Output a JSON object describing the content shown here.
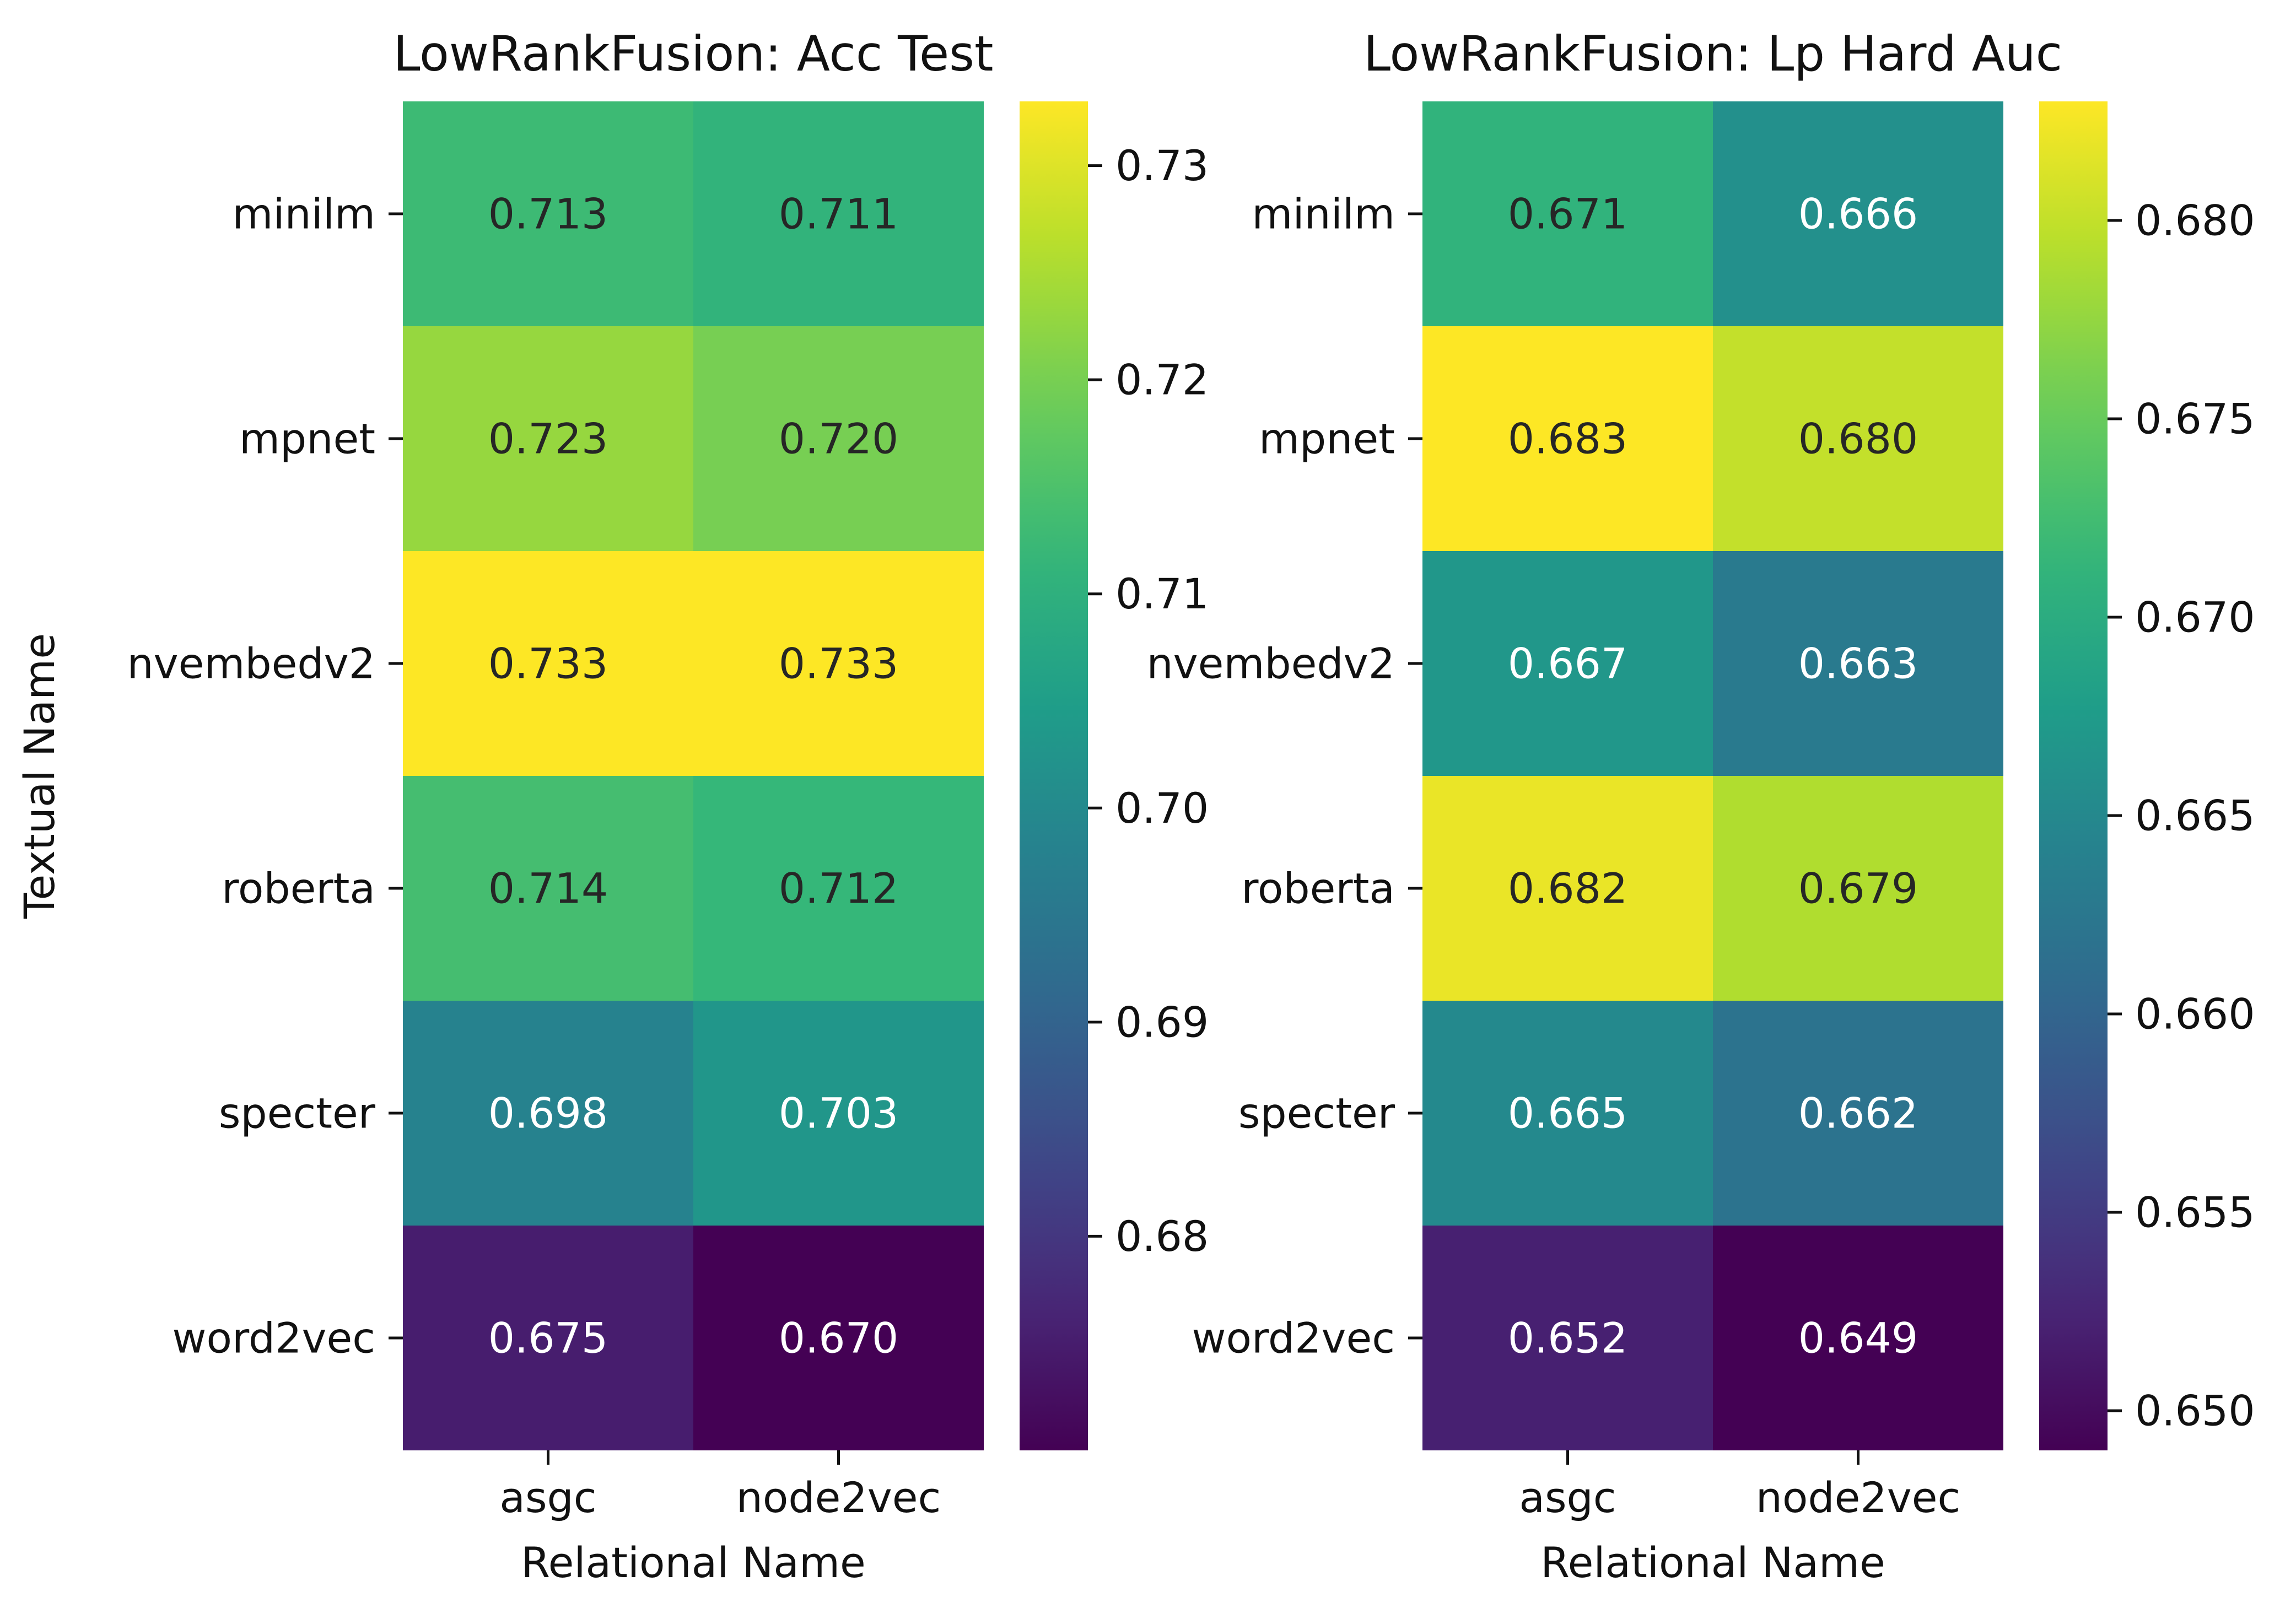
{
  "chart_data": [
    {
      "type": "heatmap",
      "title": "LowRankFusion: Acc Test",
      "xlabel": "Relational Name",
      "ylabel": "Textual Name",
      "x": [
        "asgc",
        "node2vec"
      ],
      "y": [
        "minilm",
        "mpnet",
        "nvembedv2",
        "roberta",
        "specter",
        "word2vec"
      ],
      "values": [
        [
          0.713,
          0.711
        ],
        [
          0.723,
          0.72
        ],
        [
          0.733,
          0.733
        ],
        [
          0.714,
          0.712
        ],
        [
          0.698,
          0.703
        ],
        [
          0.675,
          0.67
        ]
      ],
      "cell_labels": [
        [
          "0.713",
          "0.711"
        ],
        [
          "0.723",
          "0.720"
        ],
        [
          "0.733",
          "0.733"
        ],
        [
          "0.714",
          "0.712"
        ],
        [
          "0.698",
          "0.703"
        ],
        [
          "0.675",
          "0.670"
        ]
      ],
      "colormap": "viridis",
      "color_range": [
        0.67,
        0.733
      ],
      "colorbar_ticks": [
        "0.68",
        "0.69",
        "0.70",
        "0.71",
        "0.72",
        "0.73"
      ]
    },
    {
      "type": "heatmap",
      "title": "LowRankFusion: Lp Hard Auc",
      "xlabel": "Relational Name",
      "ylabel": "",
      "x": [
        "asgc",
        "node2vec"
      ],
      "y": [
        "minilm",
        "mpnet",
        "nvembedv2",
        "roberta",
        "specter",
        "word2vec"
      ],
      "values": [
        [
          0.671,
          0.666
        ],
        [
          0.683,
          0.68
        ],
        [
          0.667,
          0.663
        ],
        [
          0.682,
          0.679
        ],
        [
          0.665,
          0.662
        ],
        [
          0.652,
          0.649
        ]
      ],
      "cell_labels": [
        [
          "0.671",
          "0.666"
        ],
        [
          "0.683",
          "0.680"
        ],
        [
          "0.667",
          "0.663"
        ],
        [
          "0.682",
          "0.679"
        ],
        [
          "0.665",
          "0.662"
        ],
        [
          "0.652",
          "0.649"
        ]
      ],
      "colormap": "viridis",
      "color_range": [
        0.649,
        0.683
      ],
      "colorbar_ticks": [
        "0.650",
        "0.655",
        "0.660",
        "0.665",
        "0.670",
        "0.675",
        "0.680"
      ]
    }
  ]
}
